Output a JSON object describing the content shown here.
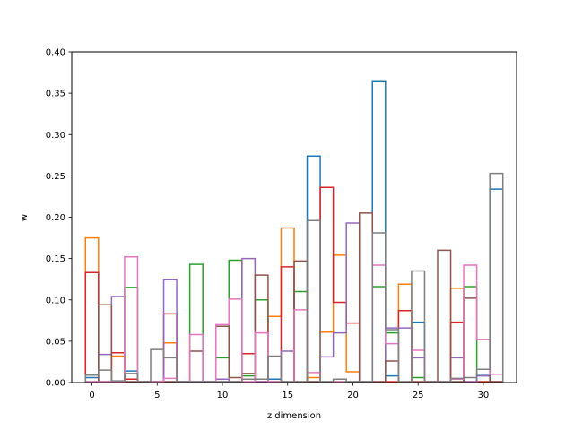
{
  "chart_data": {
    "type": "step",
    "xlabel": "z dimension",
    "ylabel": "w",
    "xlim": [
      -1.55,
      32.55
    ],
    "ylim": [
      0,
      0.4
    ],
    "xticks": [
      0,
      5,
      10,
      15,
      20,
      25,
      30
    ],
    "xtick_labels": [
      "0",
      "5",
      "10",
      "15",
      "20",
      "25",
      "30"
    ],
    "yticks": [
      0.0,
      0.05,
      0.1,
      0.15,
      0.2,
      0.25,
      0.3,
      0.35,
      0.4
    ],
    "ytick_labels": [
      "0.00",
      "0.05",
      "0.10",
      "0.15",
      "0.20",
      "0.25",
      "0.30",
      "0.35",
      "0.40"
    ],
    "x": [
      0,
      1,
      2,
      3,
      4,
      5,
      6,
      7,
      8,
      9,
      10,
      11,
      12,
      13,
      14,
      15,
      16,
      17,
      18,
      19,
      20,
      21,
      22,
      23,
      24,
      25,
      26,
      27,
      28,
      29,
      30,
      31
    ],
    "series": [
      {
        "color": "#1f77b4",
        "values": [
          0.006,
          0.001,
          0.001,
          0.014,
          0.001,
          0.001,
          0.001,
          0.001,
          0.001,
          0.001,
          0.001,
          0.001,
          0.001,
          0.001,
          0.004,
          0.001,
          0.001,
          0.274,
          0.001,
          0.001,
          0.001,
          0.001,
          0.365,
          0.008,
          0.001,
          0.073,
          0.001,
          0.001,
          0.001,
          0.001,
          0.01,
          0.234
        ]
      },
      {
        "color": "#ff7f0e",
        "values": [
          0.175,
          0.001,
          0.032,
          0.001,
          0.001,
          0.001,
          0.048,
          0.001,
          0.001,
          0.001,
          0.001,
          0.001,
          0.001,
          0.001,
          0.08,
          0.187,
          0.001,
          0.006,
          0.061,
          0.154,
          0.013,
          0.001,
          0.001,
          0.001,
          0.119,
          0.001,
          0.001,
          0.001,
          0.114,
          0.001,
          0.001,
          0.001
        ]
      },
      {
        "color": "#2ca02c",
        "values": [
          0.001,
          0.001,
          0.001,
          0.115,
          0.001,
          0.001,
          0.001,
          0.001,
          0.143,
          0.001,
          0.03,
          0.148,
          0.008,
          0.1,
          0.001,
          0.001,
          0.11,
          0.001,
          0.001,
          0.001,
          0.001,
          0.001,
          0.116,
          0.06,
          0.001,
          0.006,
          0.001,
          0.001,
          0.001,
          0.116,
          0.001,
          0.001
        ]
      },
      {
        "color": "#d62728",
        "values": [
          0.133,
          0.001,
          0.036,
          0.004,
          0.001,
          0.001,
          0.083,
          0.001,
          0.001,
          0.001,
          0.001,
          0.001,
          0.035,
          0.001,
          0.001,
          0.14,
          0.001,
          0.001,
          0.236,
          0.097,
          0.072,
          0.001,
          0.001,
          0.001,
          0.087,
          0.001,
          0.001,
          0.001,
          0.073,
          0.001,
          0.001,
          0.001
        ]
      },
      {
        "color": "#9467bd",
        "values": [
          0.001,
          0.034,
          0.104,
          0.001,
          0.001,
          0.001,
          0.125,
          0.001,
          0.001,
          0.001,
          0.004,
          0.001,
          0.15,
          0.001,
          0.001,
          0.038,
          0.001,
          0.001,
          0.031,
          0.06,
          0.193,
          0.001,
          0.001,
          0.066,
          0.066,
          0.03,
          0.001,
          0.001,
          0.03,
          0.001,
          0.008,
          0.001
        ]
      },
      {
        "color": "#8c564b",
        "values": [
          0.001,
          0.094,
          0.001,
          0.001,
          0.001,
          0.001,
          0.001,
          0.001,
          0.038,
          0.001,
          0.068,
          0.006,
          0.011,
          0.13,
          0.001,
          0.001,
          0.147,
          0.001,
          0.001,
          0.001,
          0.001,
          0.205,
          0.001,
          0.026,
          0.001,
          0.001,
          0.001,
          0.16,
          0.001,
          0.102,
          0.052,
          0.001
        ]
      },
      {
        "color": "#e377c2",
        "values": [
          0.001,
          0.001,
          0.001,
          0.152,
          0.001,
          0.001,
          0.005,
          0.001,
          0.058,
          0.001,
          0.07,
          0.101,
          0.001,
          0.06,
          0.001,
          0.001,
          0.088,
          0.012,
          0.001,
          0.001,
          0.001,
          0.001,
          0.142,
          0.047,
          0.001,
          0.039,
          0.001,
          0.001,
          0.004,
          0.142,
          0.052,
          0.01
        ]
      },
      {
        "color": "#7f7f7f",
        "values": [
          0.009,
          0.015,
          0.002,
          0.011,
          0.001,
          0.04,
          0.03,
          0.001,
          0.001,
          0.001,
          0.001,
          0.001,
          0.004,
          0.004,
          0.032,
          0.001,
          0.001,
          0.196,
          0.001,
          0.004,
          0.001,
          0.001,
          0.181,
          0.064,
          0.001,
          0.135,
          0.001,
          0.001,
          0.005,
          0.006,
          0.016,
          0.253
        ]
      }
    ]
  }
}
